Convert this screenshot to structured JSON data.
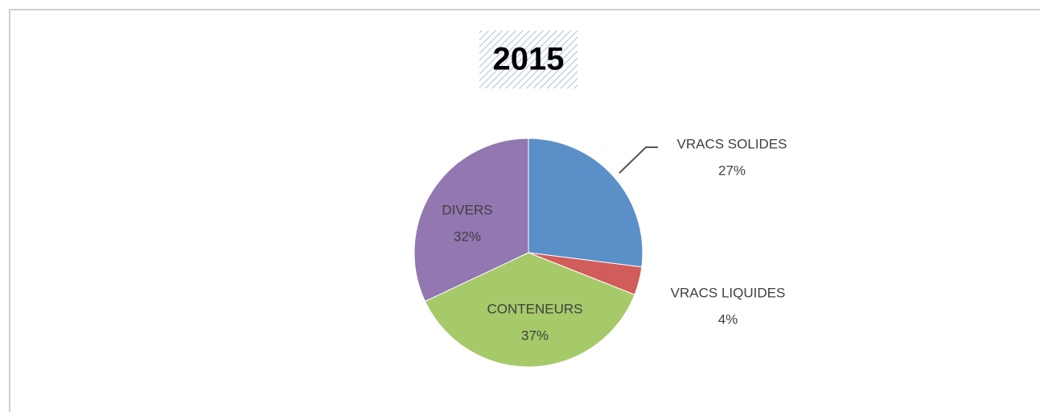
{
  "chart_data": {
    "type": "pie",
    "title": "2015",
    "categories": [
      "VRACS SOLIDES",
      "VRACS LIQUIDES",
      "CONTENEURS",
      "DIVERS"
    ],
    "values": [
      27,
      4,
      37,
      32
    ],
    "value_labels": [
      "27%",
      "4%",
      "37%",
      "32%"
    ],
    "colors": [
      "#5b8fc8",
      "#d05d5a",
      "#a6c96a",
      "#9277b0"
    ]
  }
}
